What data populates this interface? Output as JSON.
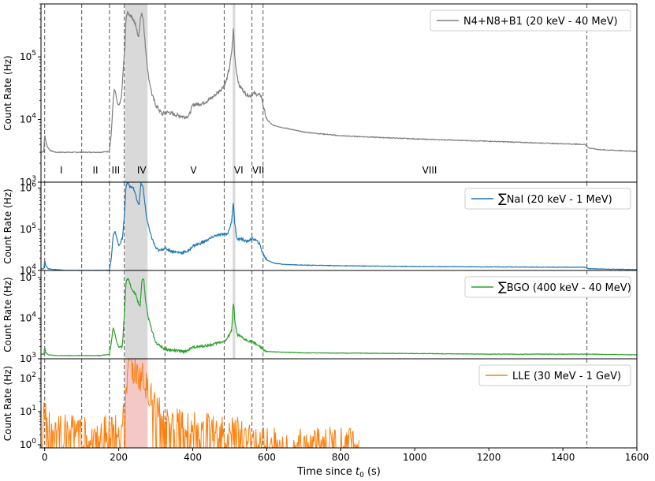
{
  "chart_data": {
    "type": "line",
    "xlabel_prefix": "Time since ",
    "xlabel_var": "t",
    "xlabel_sub": "0",
    "xlabel_suffix": " (s)",
    "x_ticks": [
      0,
      200,
      400,
      600,
      800,
      1000,
      1200,
      1400,
      1600
    ],
    "xlim": [
      -10,
      1600
    ],
    "vlines": [
      0,
      100,
      175,
      215,
      325,
      485,
      560,
      590,
      1465
    ],
    "gray_band": [
      217,
      278
    ],
    "gray_band_narrow": [
      508,
      515
    ],
    "periods": [
      {
        "label": "I",
        "x": 45
      },
      {
        "label": "II",
        "x": 137
      },
      {
        "label": "III",
        "x": 192
      },
      {
        "label": "IV",
        "x": 262
      },
      {
        "label": "V",
        "x": 402
      },
      {
        "label": "VI",
        "x": 524
      },
      {
        "label": "VII",
        "x": 577
      },
      {
        "label": "VIII",
        "x": 1040
      }
    ],
    "panels": [
      {
        "id": "gbm-sum",
        "ylabel": "Count Rate (Hz)",
        "ylog": true,
        "ylim": [
          1000,
          700000
        ],
        "y_ticks": [
          {
            "v": 1000,
            "base": "10",
            "exp": "3"
          },
          {
            "v": 10000,
            "base": "10",
            "exp": "4"
          },
          {
            "v": 100000,
            "base": "10",
            "exp": "5"
          }
        ],
        "color": "#7f7f7f",
        "legend_prefix": "",
        "legend": "N4+N8+B1 (20 keV - 40 MeV)",
        "x": [
          -10,
          -2,
          0,
          3,
          8,
          15,
          30,
          60,
          100,
          150,
          175,
          180,
          185,
          188,
          191,
          195,
          198,
          203,
          208,
          212,
          217,
          220,
          224,
          230,
          238,
          245,
          250,
          254,
          258,
          262,
          266,
          270,
          275,
          280,
          290,
          300,
          310,
          318,
          325,
          335,
          350,
          365,
          378,
          390,
          400,
          410,
          425,
          440,
          455,
          470,
          480,
          490,
          500,
          507,
          510,
          513,
          518,
          525,
          535,
          545,
          555,
          565,
          575,
          585,
          592,
          600,
          615,
          640,
          700,
          800,
          1000,
          1200,
          1400,
          1460,
          1470,
          1500,
          1600
        ],
        "y": [
          3000,
          3100,
          6000,
          4500,
          3600,
          3200,
          3000,
          3000,
          3000,
          3000,
          3100,
          6000,
          20000,
          30000,
          28000,
          20000,
          17000,
          17000,
          25000,
          60000,
          150000,
          450000,
          500000,
          470000,
          420000,
          330000,
          250000,
          200000,
          400000,
          500000,
          430000,
          200000,
          100000,
          50000,
          25000,
          17000,
          14000,
          12000,
          13000,
          13000,
          12000,
          11500,
          11000,
          11500,
          17000,
          17500,
          18000,
          20000,
          23000,
          28000,
          32000,
          40000,
          70000,
          150000,
          300000,
          110000,
          60000,
          35000,
          30000,
          25000,
          24000,
          26000,
          25000,
          24000,
          15000,
          10000,
          8200,
          7500,
          6300,
          5500,
          4900,
          4500,
          4100,
          4000,
          3500,
          3300,
          3100
        ]
      },
      {
        "id": "nai",
        "ylabel": "Count Rate (Hz)",
        "ylog": true,
        "ylim": [
          10000,
          1400000
        ],
        "y_ticks": [
          {
            "v": 10000,
            "base": "10",
            "exp": "4"
          },
          {
            "v": 100000,
            "base": "10",
            "exp": "5"
          },
          {
            "v": 1000000,
            "base": "10",
            "exp": "6"
          }
        ],
        "color": "#1f77b4",
        "legend_prefix": "∑",
        "legend": "NaI (20 keV - 1 MeV)",
        "x": [
          -10,
          -2,
          0,
          3,
          10,
          30,
          60,
          100,
          150,
          175,
          180,
          185,
          190,
          195,
          200,
          210,
          215,
          220,
          224,
          230,
          240,
          250,
          255,
          260,
          265,
          270,
          275,
          285,
          300,
          310,
          325,
          340,
          355,
          370,
          390,
          400,
          420,
          440,
          460,
          480,
          495,
          505,
          510,
          513,
          520,
          530,
          545,
          560,
          570,
          580,
          590,
          600,
          620,
          650,
          700,
          800,
          1000,
          1200,
          1400,
          1460,
          1470,
          1600
        ],
        "y": [
          11000,
          11000,
          18000,
          13000,
          11000,
          10500,
          10000,
          10000,
          10000,
          10200,
          20000,
          70000,
          90000,
          60000,
          40000,
          60000,
          200000,
          1200000,
          1400000,
          1100000,
          1000000,
          500000,
          400000,
          1300000,
          1100000,
          500000,
          200000,
          80000,
          35000,
          30000,
          35000,
          30000,
          28000,
          27000,
          30000,
          40000,
          45000,
          55000,
          70000,
          75000,
          80000,
          150000,
          500000,
          150000,
          55000,
          60000,
          50000,
          60000,
          55000,
          45000,
          25000,
          18000,
          15000,
          14000,
          13500,
          13000,
          12500,
          12200,
          12000,
          12000,
          11000,
          10500
        ]
      },
      {
        "id": "bgo",
        "ylabel": "Count Rate (Hz)",
        "ylog": true,
        "ylim": [
          1000,
          150000
        ],
        "y_ticks": [
          {
            "v": 1000,
            "base": "10",
            "exp": "3"
          },
          {
            "v": 10000,
            "base": "10",
            "exp": "4"
          },
          {
            "v": 100000,
            "base": "10",
            "exp": "5"
          }
        ],
        "color": "#2ca02c",
        "legend_prefix": "∑",
        "legend": "BGO (400 keV - 40 MeV)",
        "x": [
          -10,
          -2,
          0,
          3,
          10,
          30,
          100,
          150,
          175,
          180,
          185,
          190,
          195,
          200,
          210,
          215,
          220,
          226,
          235,
          245,
          252,
          258,
          263,
          268,
          272,
          280,
          300,
          325,
          350,
          380,
          400,
          420,
          450,
          470,
          490,
          505,
          510,
          514,
          520,
          540,
          560,
          575,
          590,
          600,
          700,
          1000,
          1200,
          1400,
          1460,
          1470,
          1600
        ],
        "y": [
          1300,
          1300,
          1900,
          1400,
          1250,
          1200,
          1200,
          1200,
          1300,
          2500,
          6000,
          4000,
          2500,
          2000,
          2000,
          12000,
          80000,
          100000,
          50000,
          40000,
          25000,
          20000,
          95000,
          90000,
          30000,
          10000,
          2500,
          1700,
          1600,
          1500,
          1900,
          2000,
          2200,
          2500,
          2800,
          5000,
          25000,
          8000,
          4000,
          3000,
          2600,
          2200,
          1700,
          1500,
          1400,
          1350,
          1300,
          1300,
          1300,
          1300,
          1250
        ]
      },
      {
        "id": "lle",
        "ylabel": "Count Rate (Hz)",
        "ylog": true,
        "ylim": [
          0.8,
          400
        ],
        "y_ticks": [
          {
            "v": 1,
            "base": "10",
            "exp": "0"
          },
          {
            "v": 10,
            "base": "10",
            "exp": "1"
          },
          {
            "v": 100,
            "base": "10",
            "exp": "2"
          }
        ],
        "color": "#ff7f0e",
        "legend_prefix": "",
        "legend": "LLE (30 MeV - 1 GeV)",
        "x": [
          -10,
          -5,
          0,
          5,
          20,
          60,
          100,
          150,
          180,
          200,
          210,
          215,
          220,
          225,
          230,
          235,
          245,
          255,
          265,
          280,
          300,
          320,
          350,
          380,
          420,
          460,
          500,
          520,
          560,
          600,
          650,
          700,
          760,
          810,
          850
        ],
        "y": [
          3,
          2,
          15,
          5,
          3,
          2.5,
          2,
          2,
          3,
          2.5,
          2.5,
          10,
          40,
          100,
          250,
          200,
          120,
          80,
          100,
          30,
          15,
          8,
          6,
          4,
          3,
          2.5,
          2,
          2,
          1.5,
          1.2,
          1.1,
          1.1,
          1,
          1,
          1
        ]
      }
    ],
    "pink_band": [
      217,
      278
    ]
  }
}
